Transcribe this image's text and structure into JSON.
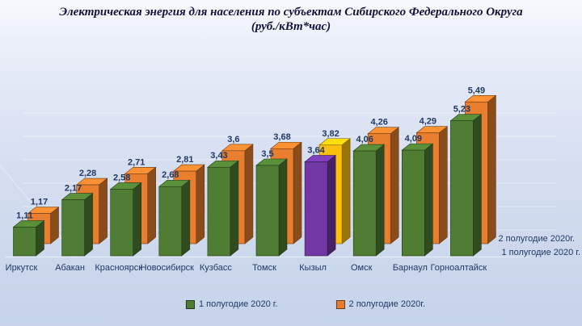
{
  "title": {
    "line1": "Электрическая энергия для населения по субъектам Сибирского Федерального Округа",
    "line2": "(руб./кВт*час)"
  },
  "chart_data": {
    "type": "bar",
    "style": "3d-clustered-column",
    "title": "Электрическая энергия для населения по субъектам Сибирского Федерального Округа (руб./кВт*час)",
    "categories": [
      "Иркутск",
      "Абакан",
      "Красноярск",
      "Новосибирск",
      "Кузбасс",
      "Томск",
      "Кызыл",
      "Омск",
      "Барнаул",
      "Горноалтайск"
    ],
    "series": [
      {
        "name": "1 полугодие 2020 г.",
        "values": [
          1.11,
          2.17,
          2.58,
          2.68,
          3.43,
          3.5,
          3.64,
          4.06,
          4.09,
          5.23
        ],
        "value_labels": [
          "1,11",
          "2,17",
          "2,58",
          "2,68",
          "3,43",
          "3,5",
          "3,64",
          "4,06",
          "4,09",
          "5,23"
        ],
        "bar_colors": [
          "#4f7d33",
          "#4f7d33",
          "#4f7d33",
          "#4f7d33",
          "#4f7d33",
          "#4f7d33",
          "#7237a5",
          "#4f7d33",
          "#4f7d33",
          "#4f7d33"
        ]
      },
      {
        "name": "2 полугодие 2020г.",
        "values": [
          1.17,
          2.28,
          2.71,
          2.81,
          3.6,
          3.68,
          3.82,
          4.26,
          4.29,
          5.49
        ],
        "value_labels": [
          "1,17",
          "2,28",
          "2,71",
          "2,81",
          "3,6",
          "3,68",
          "3,82",
          "4,26",
          "4,29",
          "5,49"
        ],
        "bar_colors": [
          "#e87e2e",
          "#e87e2e",
          "#e87e2e",
          "#e87e2e",
          "#e87e2e",
          "#e87e2e",
          "#fdc00d",
          "#e87e2e",
          "#e87e2e",
          "#e87e2e"
        ]
      }
    ],
    "depth_axis_labels": [
      "2 полугодие 2020г.",
      "1 полугодие 2020 г."
    ],
    "legend": {
      "position": "bottom",
      "entries": [
        {
          "label": "1 полугодие 2020 г.",
          "color": "#4f7d33"
        },
        {
          "label": "2 полугодие 2020г.",
          "color": "#e87e2e"
        }
      ]
    },
    "ylim": [
      0,
      6
    ],
    "gridlines": "faint white horizontal wall lines"
  },
  "colors": {
    "text": "#1f3864",
    "title": "#13133a",
    "background_top": "#f6f8fc",
    "background_bottom": "#c6d3e9"
  }
}
